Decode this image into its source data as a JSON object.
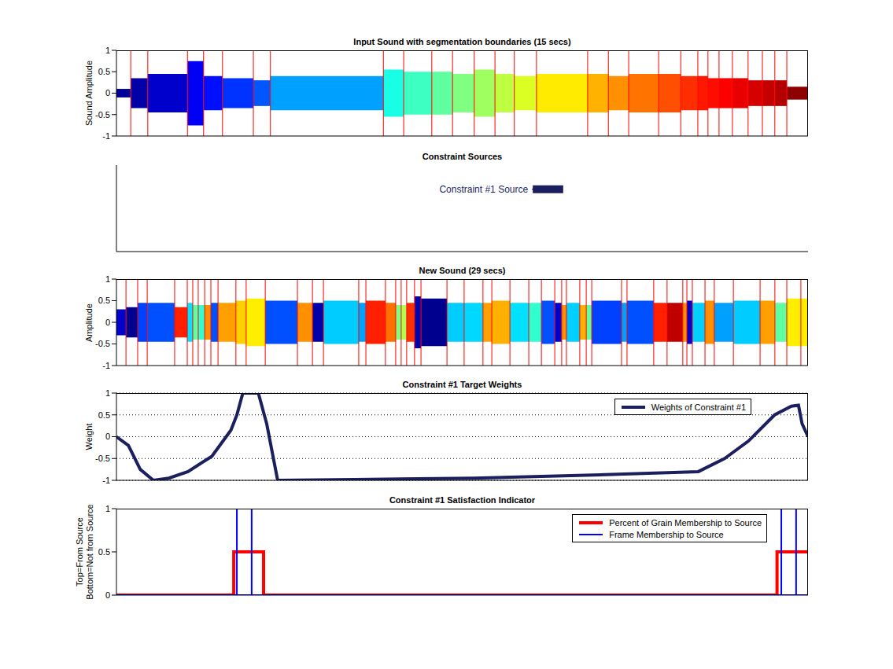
{
  "chart_data": [
    {
      "type": "waveform",
      "title": "Input Sound with segmentation boundaries (15 secs)",
      "y_label": "Sound Amplitude",
      "xlim": [
        0,
        15
      ],
      "ylim": [
        -1,
        1
      ],
      "yticks": [
        -1,
        -0.5,
        0,
        0.5,
        1
      ],
      "tick_labels": "y",
      "boundaries": [
        0.31,
        0.68,
        1.54,
        1.89,
        2.3,
        2.97,
        3.34,
        5.79,
        6.23,
        6.84,
        7.29,
        7.76,
        8.21,
        8.63,
        9.11,
        10.22,
        10.67,
        11.11,
        11.76,
        12.24,
        12.61,
        12.83,
        13.07,
        13.36,
        13.7,
        14.01,
        14.28,
        14.54
      ],
      "boundary_color": "#ff0000",
      "segment_colors": [
        "#000096",
        "#0000a8",
        "#0000cc",
        "#0000f5",
        "#000fff",
        "#0033ff",
        "#0057ff",
        "#00a0ff",
        "#19ffe6",
        "#3dffc2",
        "#60ff9f",
        "#80ff80",
        "#9fff60",
        "#beff41",
        "#dcff23",
        "#ffeb00",
        "#ffb300",
        "#ff9100",
        "#ff7300",
        "#ff4f00",
        "#ff2e00",
        "#ff1800",
        "#ff0c00",
        "#fc0000",
        "#e80000",
        "#d50000",
        "#c40000",
        "#b30000",
        "#8f0000"
      ],
      "peak_amplitudes": [
        0.1,
        0.35,
        0.45,
        0.75,
        0.4,
        0.35,
        0.3,
        0.4,
        0.55,
        0.5,
        0.5,
        0.45,
        0.55,
        0.45,
        0.4,
        0.45,
        0.45,
        0.4,
        0.45,
        0.45,
        0.4,
        0.4,
        0.35,
        0.35,
        0.35,
        0.3,
        0.3,
        0.3,
        0.15
      ]
    },
    {
      "type": "timeline",
      "title": "Constraint Sources",
      "xlim": [
        0,
        15
      ],
      "ylim": [
        0,
        1
      ],
      "tick_labels": false,
      "series": [
        {
          "name": "Constraint #1 Source",
          "color": "#1b1f5e",
          "start": 9.03,
          "end": 9.69,
          "y": 0.72
        }
      ]
    },
    {
      "type": "waveform",
      "title": "New Sound (29 secs)",
      "y_label": "Amplitude",
      "xlim": [
        0,
        29
      ],
      "ylim": [
        -1,
        1
      ],
      "yticks": [
        -1,
        -0.5,
        0,
        0.5,
        1
      ],
      "tick_labels": "y",
      "boundaries": [
        0.4,
        0.89,
        1.29,
        2.44,
        2.97,
        3.2,
        3.43,
        3.7,
        3.96,
        4.26,
        5.01,
        5.44,
        6.24,
        7.59,
        8.22,
        8.68,
        10.16,
        10.46,
        11.28,
        11.71,
        11.94,
        12.17,
        12.5,
        12.77,
        13.86,
        14.58,
        15.37,
        15.74,
        16.5,
        17.29,
        17.82,
        18.38,
        18.67,
        18.87,
        19.43,
        19.7,
        19.93,
        21.18,
        21.41,
        22.53,
        23.09,
        23.75,
        23.92,
        24.15,
        24.68,
        25.07,
        25.87,
        26.99,
        27.61,
        28.11,
        28.7
      ],
      "boundary_color": "#ff0000",
      "segment_colors": [
        "#0000cc",
        "#00008f",
        "#0040ff",
        "#0050ff",
        "#ff2000",
        "#00e0ff",
        "#60ff9f",
        "#30ffd0",
        "#ff9000",
        "#0050ff",
        "#ffa000",
        "#ffd000",
        "#ffee00",
        "#0050ff",
        "#ff9000",
        "#0000aa",
        "#00ccff",
        "#00a0ff",
        "#ff2000",
        "#ff7000",
        "#80ff80",
        "#b0ff50",
        "#ff3000",
        "#0000aa",
        "#00008f",
        "#00ccff",
        "#00d8ff",
        "#ffa000",
        "#ffb000",
        "#00e0ff",
        "#30ffd0",
        "#0050ff",
        "#0000cc",
        "#ff9000",
        "#00d0ff",
        "#ffb000",
        "#60ff9f",
        "#0040ff",
        "#00a0ff",
        "#0050ff",
        "#ff2000",
        "#c00000",
        "#ff9000",
        "#0000cc",
        "#00d0ff",
        "#ff9000",
        "#00a0ff",
        "#00ccff",
        "#ffa000",
        "#60ff9f",
        "#ffee00",
        "#ffee00"
      ],
      "peak_amplitudes": [
        0.3,
        0.35,
        0.45,
        0.45,
        0.35,
        0.45,
        0.4,
        0.4,
        0.4,
        0.45,
        0.45,
        0.5,
        0.55,
        0.5,
        0.45,
        0.45,
        0.5,
        0.45,
        0.5,
        0.45,
        0.4,
        0.4,
        0.45,
        0.6,
        0.55,
        0.45,
        0.45,
        0.45,
        0.5,
        0.45,
        0.45,
        0.5,
        0.45,
        0.4,
        0.45,
        0.4,
        0.4,
        0.5,
        0.45,
        0.5,
        0.45,
        0.45,
        0.45,
        0.5,
        0.45,
        0.5,
        0.45,
        0.5,
        0.5,
        0.45,
        0.55,
        0.55
      ]
    },
    {
      "type": "line",
      "title": "Constraint #1 Target Weights",
      "y_label": "Weight",
      "xlim": [
        0,
        29
      ],
      "ylim": [
        -1,
        1
      ],
      "yticks": [
        -1,
        -0.5,
        0,
        0.5,
        1
      ],
      "tick_labels": "y",
      "grid": true,
      "legend": "upper right",
      "x": [
        0,
        0.5,
        1.0,
        1.55,
        2.2,
        3.0,
        4.0,
        4.8,
        5.05,
        5.3,
        5.95,
        6.3,
        6.76,
        10,
        15,
        20,
        24.4,
        25.5,
        26.5,
        27.6,
        28.3,
        28.6,
        28.75,
        29
      ],
      "series": [
        {
          "name": "Weights of Constraint #1",
          "color": "#1b1f5e",
          "values": [
            0,
            -0.2,
            -0.75,
            -1,
            -0.95,
            -0.8,
            -0.45,
            0.15,
            0.5,
            1,
            1,
            0.3,
            -1,
            -0.98,
            -0.95,
            -0.88,
            -0.8,
            -0.5,
            -0.1,
            0.5,
            0.7,
            0.72,
            0.3,
            0
          ]
        }
      ]
    },
    {
      "type": "line",
      "title": "Constraint #1 Satisfaction Indicator",
      "y_label": [
        "Top=From Source",
        "Bottom=Not from Source"
      ],
      "xlim": [
        0,
        29
      ],
      "ylim": [
        0,
        1
      ],
      "yticks": [
        0,
        0.5,
        1
      ],
      "tick_labels": "y",
      "legend": "upper right",
      "series": [
        {
          "name": "Percent of Grain Membership to Source",
          "color": "#ff0000",
          "x": [
            0,
            4.92,
            4.92,
            6.17,
            6.17,
            27.7,
            27.7,
            29
          ],
          "values": [
            0,
            0,
            0.5,
            0.5,
            0,
            0,
            0.5,
            0.5
          ]
        },
        {
          "name": "Frame Membership to Source",
          "color": "#0000ff",
          "x": [
            0,
            5.05,
            5.05,
            5.05,
            5.67,
            5.67,
            5.67,
            27.88,
            27.88,
            27.88,
            28.5,
            28.5,
            28.5,
            29
          ],
          "values": [
            0,
            0,
            1,
            0,
            0,
            1,
            0,
            0,
            1,
            0,
            0,
            1,
            0,
            0
          ]
        }
      ]
    }
  ]
}
